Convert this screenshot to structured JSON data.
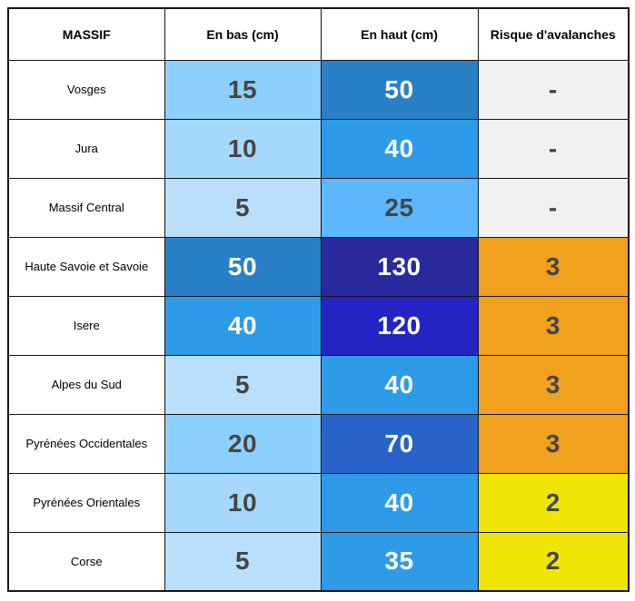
{
  "chart_data": {
    "type": "table",
    "title": "",
    "columns": [
      "MASSIF",
      "En bas (cm)",
      "En haut (cm)",
      "Risque d'avalanches"
    ],
    "rows": [
      {
        "massif": "Vosges",
        "en_bas": "15",
        "en_haut": "50",
        "risque": "-"
      },
      {
        "massif": "Jura",
        "en_bas": "10",
        "en_haut": "40",
        "risque": "-"
      },
      {
        "massif": "Massif Central",
        "en_bas": "5",
        "en_haut": "25",
        "risque": "-"
      },
      {
        "massif": "Haute Savoie et Savoie",
        "en_bas": "50",
        "en_haut": "130",
        "risque": "3"
      },
      {
        "massif": "Isere",
        "en_bas": "40",
        "en_haut": "120",
        "risque": "3"
      },
      {
        "massif": "Alpes du Sud",
        "en_bas": "5",
        "en_haut": "40",
        "risque": "3"
      },
      {
        "massif": "Pyrénées Occidentales",
        "en_bas": "20",
        "en_haut": "70",
        "risque": "3"
      },
      {
        "massif": "Pyrénées Orientales",
        "en_bas": "10",
        "en_haut": "40",
        "risque": "2"
      },
      {
        "massif": "Corse",
        "en_bas": "5",
        "en_haut": "35",
        "risque": "2"
      }
    ]
  },
  "cell_colors": [
    {
      "en_bas_bg": "#8DCFFE",
      "en_bas_fg": "#454545",
      "en_haut_bg": "#2980C6",
      "en_haut_fg": "#FFFFFF",
      "risque_bg": "#F2F1EF",
      "risque_fg": "#454545"
    },
    {
      "en_bas_bg": "#A5D8FC",
      "en_bas_fg": "#454545",
      "en_haut_bg": "#2E9BE8",
      "en_haut_fg": "#FFFFFF",
      "risque_bg": "#F2F1EF",
      "risque_fg": "#454545"
    },
    {
      "en_bas_bg": "#B9DFFD",
      "en_bas_fg": "#454545",
      "en_haut_bg": "#5CB8FB",
      "en_haut_fg": "#454545",
      "risque_bg": "#F2F1EF",
      "risque_fg": "#454545"
    },
    {
      "en_bas_bg": "#2980C6",
      "en_bas_fg": "#FFFFFF",
      "en_haut_bg": "#2A2A9E",
      "en_haut_fg": "#FFFFFF",
      "risque_bg": "#F1A11E",
      "risque_fg": "#454545"
    },
    {
      "en_bas_bg": "#2E9BE8",
      "en_bas_fg": "#FFFFFF",
      "en_haut_bg": "#2424C4",
      "en_haut_fg": "#FFFFFF",
      "risque_bg": "#F1A11E",
      "risque_fg": "#454545"
    },
    {
      "en_bas_bg": "#B9DFFD",
      "en_bas_fg": "#454545",
      "en_haut_bg": "#2E9BE8",
      "en_haut_fg": "#FFFFFF",
      "risque_bg": "#F1A11E",
      "risque_fg": "#454545"
    },
    {
      "en_bas_bg": "#8DCFFE",
      "en_bas_fg": "#454545",
      "en_haut_bg": "#2763C8",
      "en_haut_fg": "#FFFFFF",
      "risque_bg": "#F1A11E",
      "risque_fg": "#454545"
    },
    {
      "en_bas_bg": "#A5D8FC",
      "en_bas_fg": "#454545",
      "en_haut_bg": "#2E9BE8",
      "en_haut_fg": "#FFFFFF",
      "risque_bg": "#F0E606",
      "risque_fg": "#454545"
    },
    {
      "en_bas_bg": "#B9DFFD",
      "en_bas_fg": "#454545",
      "en_haut_bg": "#2E9BE8",
      "en_haut_fg": "#FFFFFF",
      "risque_bg": "#F0E606",
      "risque_fg": "#454545"
    }
  ]
}
